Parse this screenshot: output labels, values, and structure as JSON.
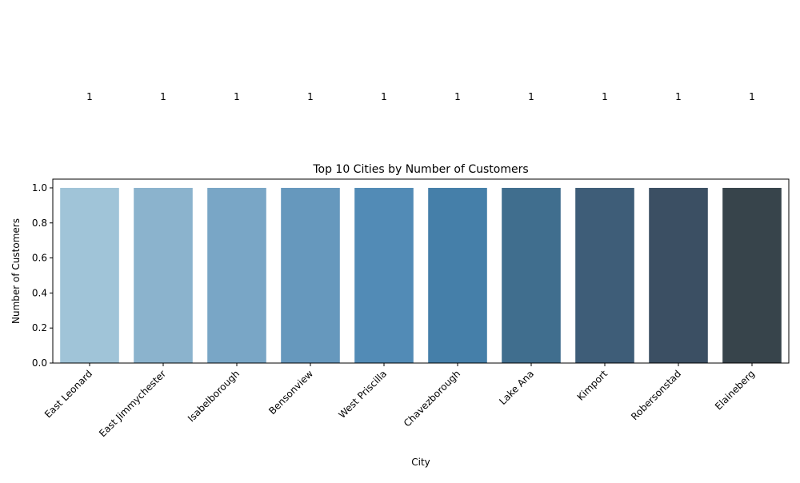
{
  "chart_data": {
    "type": "bar",
    "title": "Top 10 Cities by Number of Customers",
    "xlabel": "City",
    "ylabel": "Number of Customers",
    "categories": [
      "East Leonard",
      "East Jimmychester",
      "Isabelborough",
      "Bensonview",
      "West Priscilla",
      "Chavezborough",
      "Lake Ana",
      "Kimport",
      "Robersonstad",
      "Elaineberg"
    ],
    "values": [
      1,
      1,
      1,
      1,
      1,
      1,
      1,
      1,
      1,
      1
    ],
    "data_labels": [
      "1",
      "1",
      "1",
      "1",
      "1",
      "1",
      "1",
      "1",
      "1",
      "1"
    ],
    "ylim": [
      0,
      1.05
    ],
    "yticks": [
      "0.0",
      "0.2",
      "0.4",
      "0.6",
      "0.8",
      "1.0"
    ],
    "bar_colors": [
      "#a0c4d8",
      "#8bb3cd",
      "#79a6c6",
      "#6698bd",
      "#528bb6",
      "#457fa9",
      "#406e8e",
      "#3e5d78",
      "#3b4f63",
      "#37444b"
    ],
    "grid": false,
    "legend": "none"
  }
}
